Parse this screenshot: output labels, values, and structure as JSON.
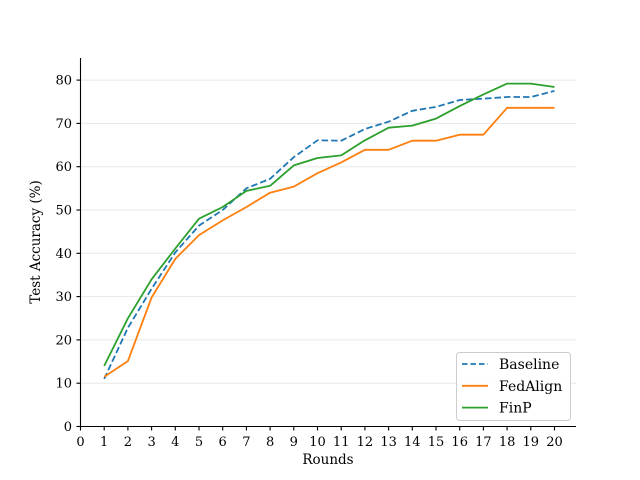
{
  "chart_data": {
    "type": "line",
    "title": "",
    "xlabel": "Rounds",
    "ylabel": "Test Accuracy (%)",
    "x": [
      1,
      2,
      3,
      4,
      5,
      6,
      7,
      8,
      9,
      10,
      11,
      12,
      13,
      14,
      15,
      16,
      17,
      18,
      19,
      20
    ],
    "xlim": [
      0,
      20.9
    ],
    "ylim": [
      0,
      85
    ],
    "xticks": [
      0,
      1,
      2,
      3,
      4,
      5,
      6,
      7,
      8,
      9,
      10,
      11,
      12,
      13,
      14,
      15,
      16,
      17,
      18,
      19,
      20
    ],
    "yticks": [
      0,
      10,
      20,
      30,
      40,
      50,
      60,
      70,
      80
    ],
    "grid": "horizontal-only",
    "legend_position": "lower-right",
    "series": [
      {
        "name": "Baseline",
        "color": "#1f77b4",
        "line_style": "dashed",
        "values": [
          11,
          22.8,
          31.8,
          40.2,
          46.4,
          50,
          55,
          57.2,
          62.2,
          66.1,
          66,
          68.7,
          70.4,
          72.9,
          73.8,
          75.4,
          75.7,
          76.1,
          76.1,
          77.5
        ]
      },
      {
        "name": "FedAlign",
        "color": "#ff7f0e",
        "line_style": "solid",
        "values": [
          11.5,
          15.1,
          29.8,
          38.7,
          44.2,
          47.6,
          50.7,
          54,
          55.4,
          58.5,
          61,
          63.9,
          63.9,
          66,
          66,
          67.4,
          67.4,
          73.6,
          73.6,
          73.6
        ]
      },
      {
        "name": "FinP",
        "color": "#2ca02c",
        "line_style": "solid",
        "values": [
          14,
          25,
          34,
          41.1,
          48,
          50.7,
          54.4,
          55.6,
          60.3,
          62,
          62.6,
          66.1,
          69,
          69.5,
          71.1,
          74,
          76.7,
          79.2,
          79.2,
          78.4
        ]
      }
    ],
    "legend_entries": [
      "Baseline",
      "FedAlign",
      "FinP"
    ]
  },
  "colors": {
    "background": "#ffffff",
    "grid": "#e8e8e8",
    "axis": "#000000",
    "legend_border": "#cccccc"
  }
}
